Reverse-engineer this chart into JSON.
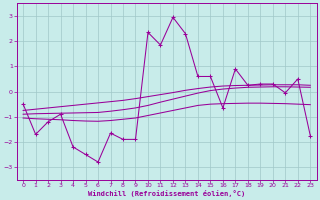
{
  "xlabel": "Windchill (Refroidissement éolien,°C)",
  "bg_color": "#c8ecea",
  "grid_color": "#a0c8c8",
  "line_color": "#990099",
  "xlim": [
    -0.5,
    23.5
  ],
  "ylim": [
    -3.5,
    3.5
  ],
  "yticks": [
    -3,
    -2,
    -1,
    0,
    1,
    2,
    3
  ],
  "xticks": [
    0,
    1,
    2,
    3,
    4,
    5,
    6,
    7,
    8,
    9,
    10,
    11,
    12,
    13,
    14,
    15,
    16,
    17,
    18,
    19,
    20,
    21,
    22,
    23
  ],
  "main_x": [
    0,
    1,
    2,
    3,
    4,
    5,
    6,
    7,
    8,
    9,
    10,
    11,
    12,
    13,
    14,
    15,
    16,
    17,
    18,
    19,
    20,
    21,
    22,
    23
  ],
  "main_y": [
    -0.5,
    -1.7,
    -1.2,
    -0.9,
    -2.2,
    -2.5,
    -2.8,
    -1.65,
    -1.9,
    -1.9,
    2.35,
    1.85,
    2.95,
    2.3,
    0.6,
    0.6,
    -0.65,
    0.9,
    0.25,
    0.3,
    0.3,
    -0.05,
    0.5,
    -1.75
  ],
  "smooth1_x": [
    0,
    1,
    2,
    3,
    4,
    5,
    6,
    7,
    8,
    9,
    10,
    11,
    12,
    13,
    14,
    15,
    16,
    17,
    18,
    19,
    20,
    21,
    22,
    23
  ],
  "smooth1_y": [
    -0.75,
    -0.7,
    -0.65,
    -0.6,
    -0.55,
    -0.5,
    -0.45,
    -0.4,
    -0.35,
    -0.28,
    -0.2,
    -0.12,
    -0.04,
    0.05,
    0.12,
    0.18,
    0.22,
    0.24,
    0.25,
    0.26,
    0.27,
    0.27,
    0.27,
    0.25
  ],
  "smooth2_x": [
    0,
    1,
    2,
    3,
    4,
    5,
    6,
    7,
    8,
    9,
    10,
    11,
    12,
    13,
    14,
    15,
    16,
    17,
    18,
    19,
    20,
    21,
    22,
    23
  ],
  "smooth2_y": [
    -1.05,
    -1.08,
    -1.1,
    -1.12,
    -1.15,
    -1.17,
    -1.18,
    -1.15,
    -1.1,
    -1.05,
    -0.95,
    -0.85,
    -0.75,
    -0.65,
    -0.55,
    -0.5,
    -0.48,
    -0.47,
    -0.46,
    -0.46,
    -0.47,
    -0.48,
    -0.5,
    -0.52
  ],
  "smooth3_x": [
    0,
    1,
    2,
    3,
    4,
    5,
    6,
    7,
    8,
    9,
    10,
    11,
    12,
    13,
    14,
    15,
    16,
    17,
    18,
    19,
    20,
    21,
    22,
    23
  ],
  "smooth3_y": [
    -0.9,
    -0.88,
    -0.87,
    -0.86,
    -0.85,
    -0.84,
    -0.83,
    -0.78,
    -0.72,
    -0.65,
    -0.55,
    -0.42,
    -0.3,
    -0.18,
    -0.06,
    0.04,
    0.1,
    0.14,
    0.17,
    0.18,
    0.19,
    0.19,
    0.18,
    0.17
  ]
}
